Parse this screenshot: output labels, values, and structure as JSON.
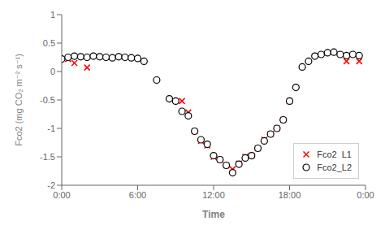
{
  "chart_data": {
    "type": "scatter",
    "xlabel": "Time",
    "ylabel": "Fco2 (mg CO₂ m⁻² s⁻¹)",
    "xlim": [
      0,
      24
    ],
    "xticks": [
      {
        "value": 0,
        "label": "0:00"
      },
      {
        "value": 6,
        "label": "6:00"
      },
      {
        "value": 12,
        "label": "12:00"
      },
      {
        "value": 18,
        "label": "18:00"
      },
      {
        "value": 24,
        "label": "0:00"
      }
    ],
    "ylim": [
      -2,
      1
    ],
    "yticks": [
      -2,
      -1.5,
      -1,
      -0.5,
      0,
      0.5,
      1
    ],
    "legend": "lower right",
    "series": [
      {
        "name": "Fco2  L1",
        "color": "#ff0000",
        "marker": "x",
        "x": [
          0.5,
          1.0,
          2.0,
          9.5,
          10.0,
          10.5,
          11.0,
          11.5,
          12.0,
          12.5,
          13.0,
          13.5,
          14.0,
          14.5,
          15.0,
          15.5,
          16.0,
          16.5,
          17.0,
          17.5,
          18.0,
          22.5,
          23.5
        ],
        "values": [
          0.22,
          0.15,
          0.07,
          -0.52,
          -0.72,
          -1.05,
          -1.22,
          -1.3,
          -1.5,
          -1.55,
          -1.65,
          -1.72,
          -1.62,
          -1.5,
          -1.48,
          -1.35,
          -1.2,
          -1.1,
          -1.0,
          -0.85,
          -0.52,
          0.18,
          0.18
        ]
      },
      {
        "name": "Fco2_L2",
        "color": "#000000",
        "marker": "o",
        "x": [
          0.0,
          0.5,
          1.0,
          1.5,
          2.0,
          2.5,
          3.0,
          3.5,
          4.0,
          4.5,
          5.0,
          5.5,
          6.0,
          6.5,
          7.5,
          8.5,
          9.0,
          9.5,
          10.0,
          10.5,
          11.0,
          11.5,
          12.0,
          12.5,
          13.0,
          13.5,
          14.0,
          14.5,
          15.0,
          15.5,
          16.0,
          16.5,
          17.0,
          17.5,
          18.0,
          18.5,
          19.0,
          19.5,
          20.0,
          20.5,
          21.0,
          21.5,
          22.0,
          22.5,
          23.0,
          23.5
        ],
        "values": [
          0.22,
          0.25,
          0.27,
          0.26,
          0.25,
          0.27,
          0.26,
          0.25,
          0.24,
          0.26,
          0.25,
          0.24,
          0.23,
          0.18,
          -0.15,
          -0.48,
          -0.52,
          -0.7,
          -0.78,
          -1.05,
          -1.2,
          -1.28,
          -1.48,
          -1.55,
          -1.65,
          -1.78,
          -1.63,
          -1.52,
          -1.48,
          -1.35,
          -1.22,
          -1.1,
          -1.0,
          -0.85,
          -0.52,
          -0.28,
          0.08,
          0.18,
          0.27,
          0.3,
          0.33,
          0.34,
          0.3,
          0.28,
          0.3,
          0.28
        ]
      }
    ]
  }
}
